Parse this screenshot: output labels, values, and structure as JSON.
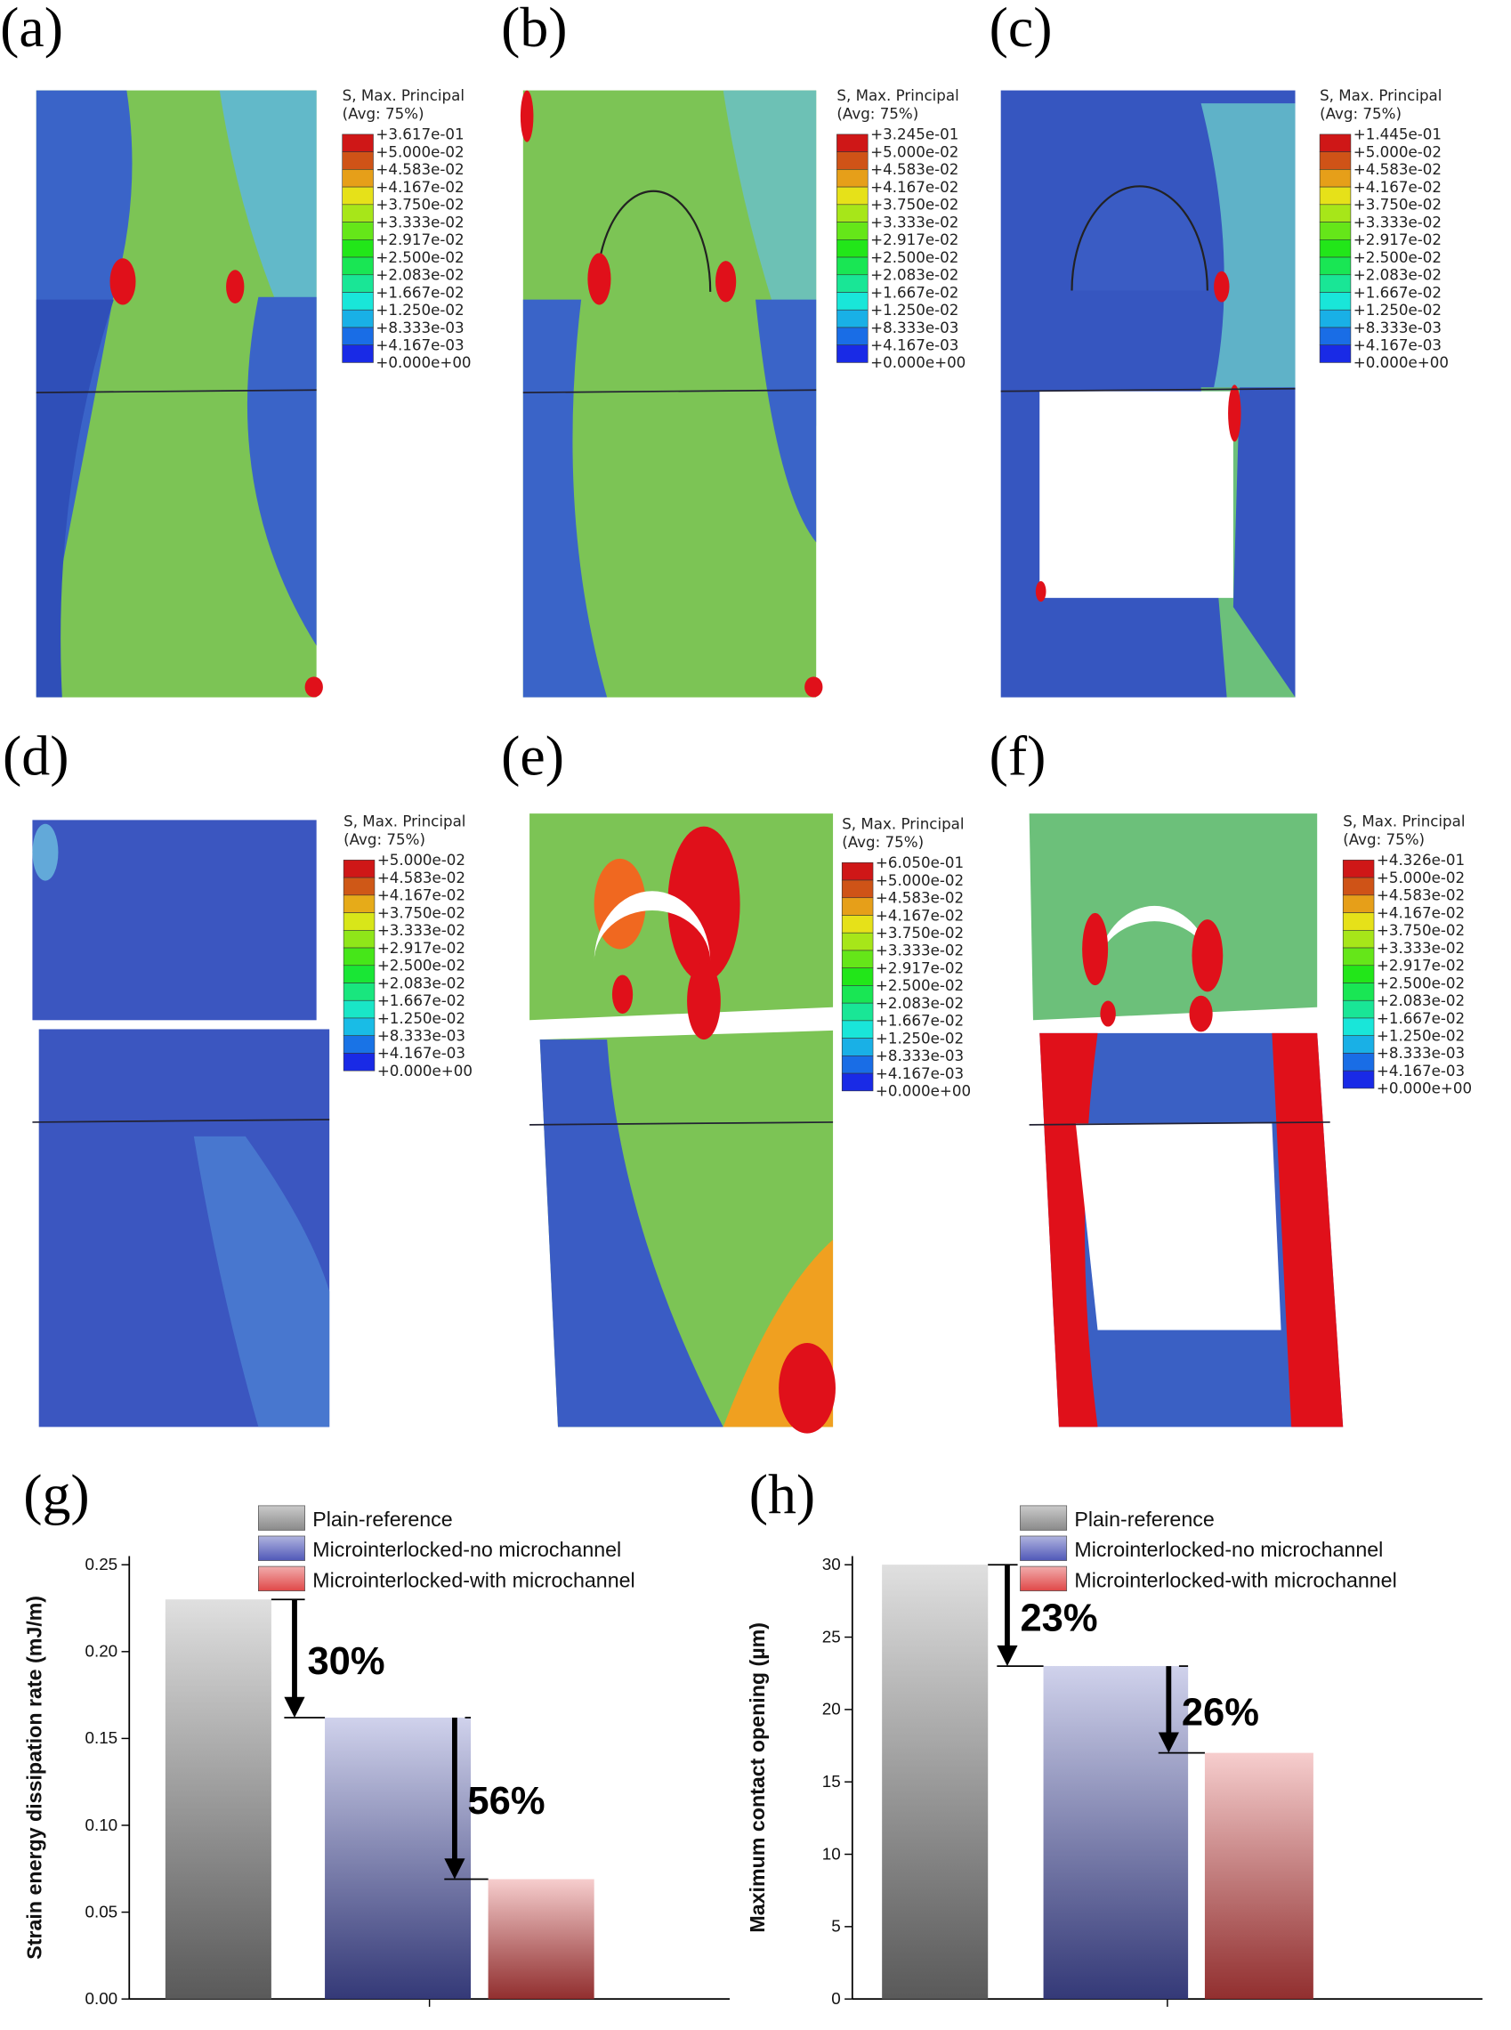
{
  "contour_panels": [
    {
      "label": "(a)",
      "legend_title": "S, Max. Principal",
      "legend_subtitle": "(Avg: 75%)",
      "legend_levels": [
        "+3.617e-01",
        "+5.000e-02",
        "+4.583e-02",
        "+4.167e-02",
        "+3.750e-02",
        "+3.333e-02",
        "+2.917e-02",
        "+2.500e-02",
        "+2.083e-02",
        "+1.667e-02",
        "+1.250e-02",
        "+8.333e-03",
        "+4.167e-03",
        "+0.000e+00"
      ]
    },
    {
      "label": "(b)",
      "legend_title": "S, Max. Principal",
      "legend_subtitle": "(Avg: 75%)",
      "legend_levels": [
        "+3.245e-01",
        "+5.000e-02",
        "+4.583e-02",
        "+4.167e-02",
        "+3.750e-02",
        "+3.333e-02",
        "+2.917e-02",
        "+2.500e-02",
        "+2.083e-02",
        "+1.667e-02",
        "+1.250e-02",
        "+8.333e-03",
        "+4.167e-03",
        "+0.000e+00"
      ]
    },
    {
      "label": "(c)",
      "legend_title": "S, Max. Principal",
      "legend_subtitle": "(Avg: 75%)",
      "legend_levels": [
        "+1.445e-01",
        "+5.000e-02",
        "+4.583e-02",
        "+4.167e-02",
        "+3.750e-02",
        "+3.333e-02",
        "+2.917e-02",
        "+2.500e-02",
        "+2.083e-02",
        "+1.667e-02",
        "+1.250e-02",
        "+8.333e-03",
        "+4.167e-03",
        "+0.000e+00"
      ]
    },
    {
      "label": "(d)",
      "legend_title": "S, Max. Principal",
      "legend_subtitle": "(Avg: 75%)",
      "legend_levels": [
        "+5.000e-02",
        "+4.583e-02",
        "+4.167e-02",
        "+3.750e-02",
        "+3.333e-02",
        "+2.917e-02",
        "+2.500e-02",
        "+2.083e-02",
        "+1.667e-02",
        "+1.250e-02",
        "+8.333e-03",
        "+4.167e-03",
        "+0.000e+00"
      ]
    },
    {
      "label": "(e)",
      "legend_title": "S, Max. Principal",
      "legend_subtitle": "(Avg: 75%)",
      "legend_levels": [
        "+6.050e-01",
        "+5.000e-02",
        "+4.583e-02",
        "+4.167e-02",
        "+3.750e-02",
        "+3.333e-02",
        "+2.917e-02",
        "+2.500e-02",
        "+2.083e-02",
        "+1.667e-02",
        "+1.250e-02",
        "+8.333e-03",
        "+4.167e-03",
        "+0.000e+00"
      ]
    },
    {
      "label": "(f)",
      "legend_title": "S, Max. Principal",
      "legend_subtitle": "(Avg: 75%)",
      "legend_levels": [
        "+4.326e-01",
        "+5.000e-02",
        "+4.583e-02",
        "+4.167e-02",
        "+3.750e-02",
        "+3.333e-02",
        "+2.917e-02",
        "+2.500e-02",
        "+2.083e-02",
        "+1.667e-02",
        "+1.250e-02",
        "+8.333e-03",
        "+4.167e-03",
        "+0.000e+00"
      ]
    }
  ],
  "chart_data": [
    {
      "type": "bar",
      "panel_label": "(g)",
      "y_label": "Strain energy dissipation rate (mJ/m)",
      "series": [
        {
          "name": "Plain-reference",
          "color": "#8a8a8a",
          "values": [
            0.23
          ]
        },
        {
          "name": "Microinterlocked-no microchannel",
          "color": "#5058b8",
          "values": [
            0.162
          ]
        },
        {
          "name": "Microinterlocked-with microchannel",
          "color": "#e04848",
          "values": [
            0.069
          ]
        }
      ],
      "annotations": [
        "30%",
        "56%"
      ],
      "ylim": [
        0,
        0.255
      ],
      "yticks": [
        {
          "value": 0,
          "label": "0.00"
        },
        {
          "value": 0.05,
          "label": "0.05"
        },
        {
          "value": 0.1,
          "label": "0.10"
        },
        {
          "value": 0.15,
          "label": "0.15"
        },
        {
          "value": 0.2,
          "label": "0.20"
        },
        {
          "value": 0.25,
          "label": "0.25"
        }
      ]
    },
    {
      "type": "bar",
      "panel_label": "(h)",
      "y_label": "Maximum contact opening (µm)",
      "series": [
        {
          "name": "Plain-reference",
          "color": "#8a8a8a",
          "values": [
            30
          ]
        },
        {
          "name": "Microinterlocked-no microchannel",
          "color": "#5058b8",
          "values": [
            23
          ]
        },
        {
          "name": "Microinterlocked-with microchannel",
          "color": "#e04848",
          "values": [
            17
          ]
        }
      ],
      "annotations": [
        "23%",
        "26%"
      ],
      "ylim": [
        0,
        30.6
      ],
      "yticks": [
        0,
        5,
        10,
        15,
        20,
        25,
        30
      ]
    }
  ]
}
